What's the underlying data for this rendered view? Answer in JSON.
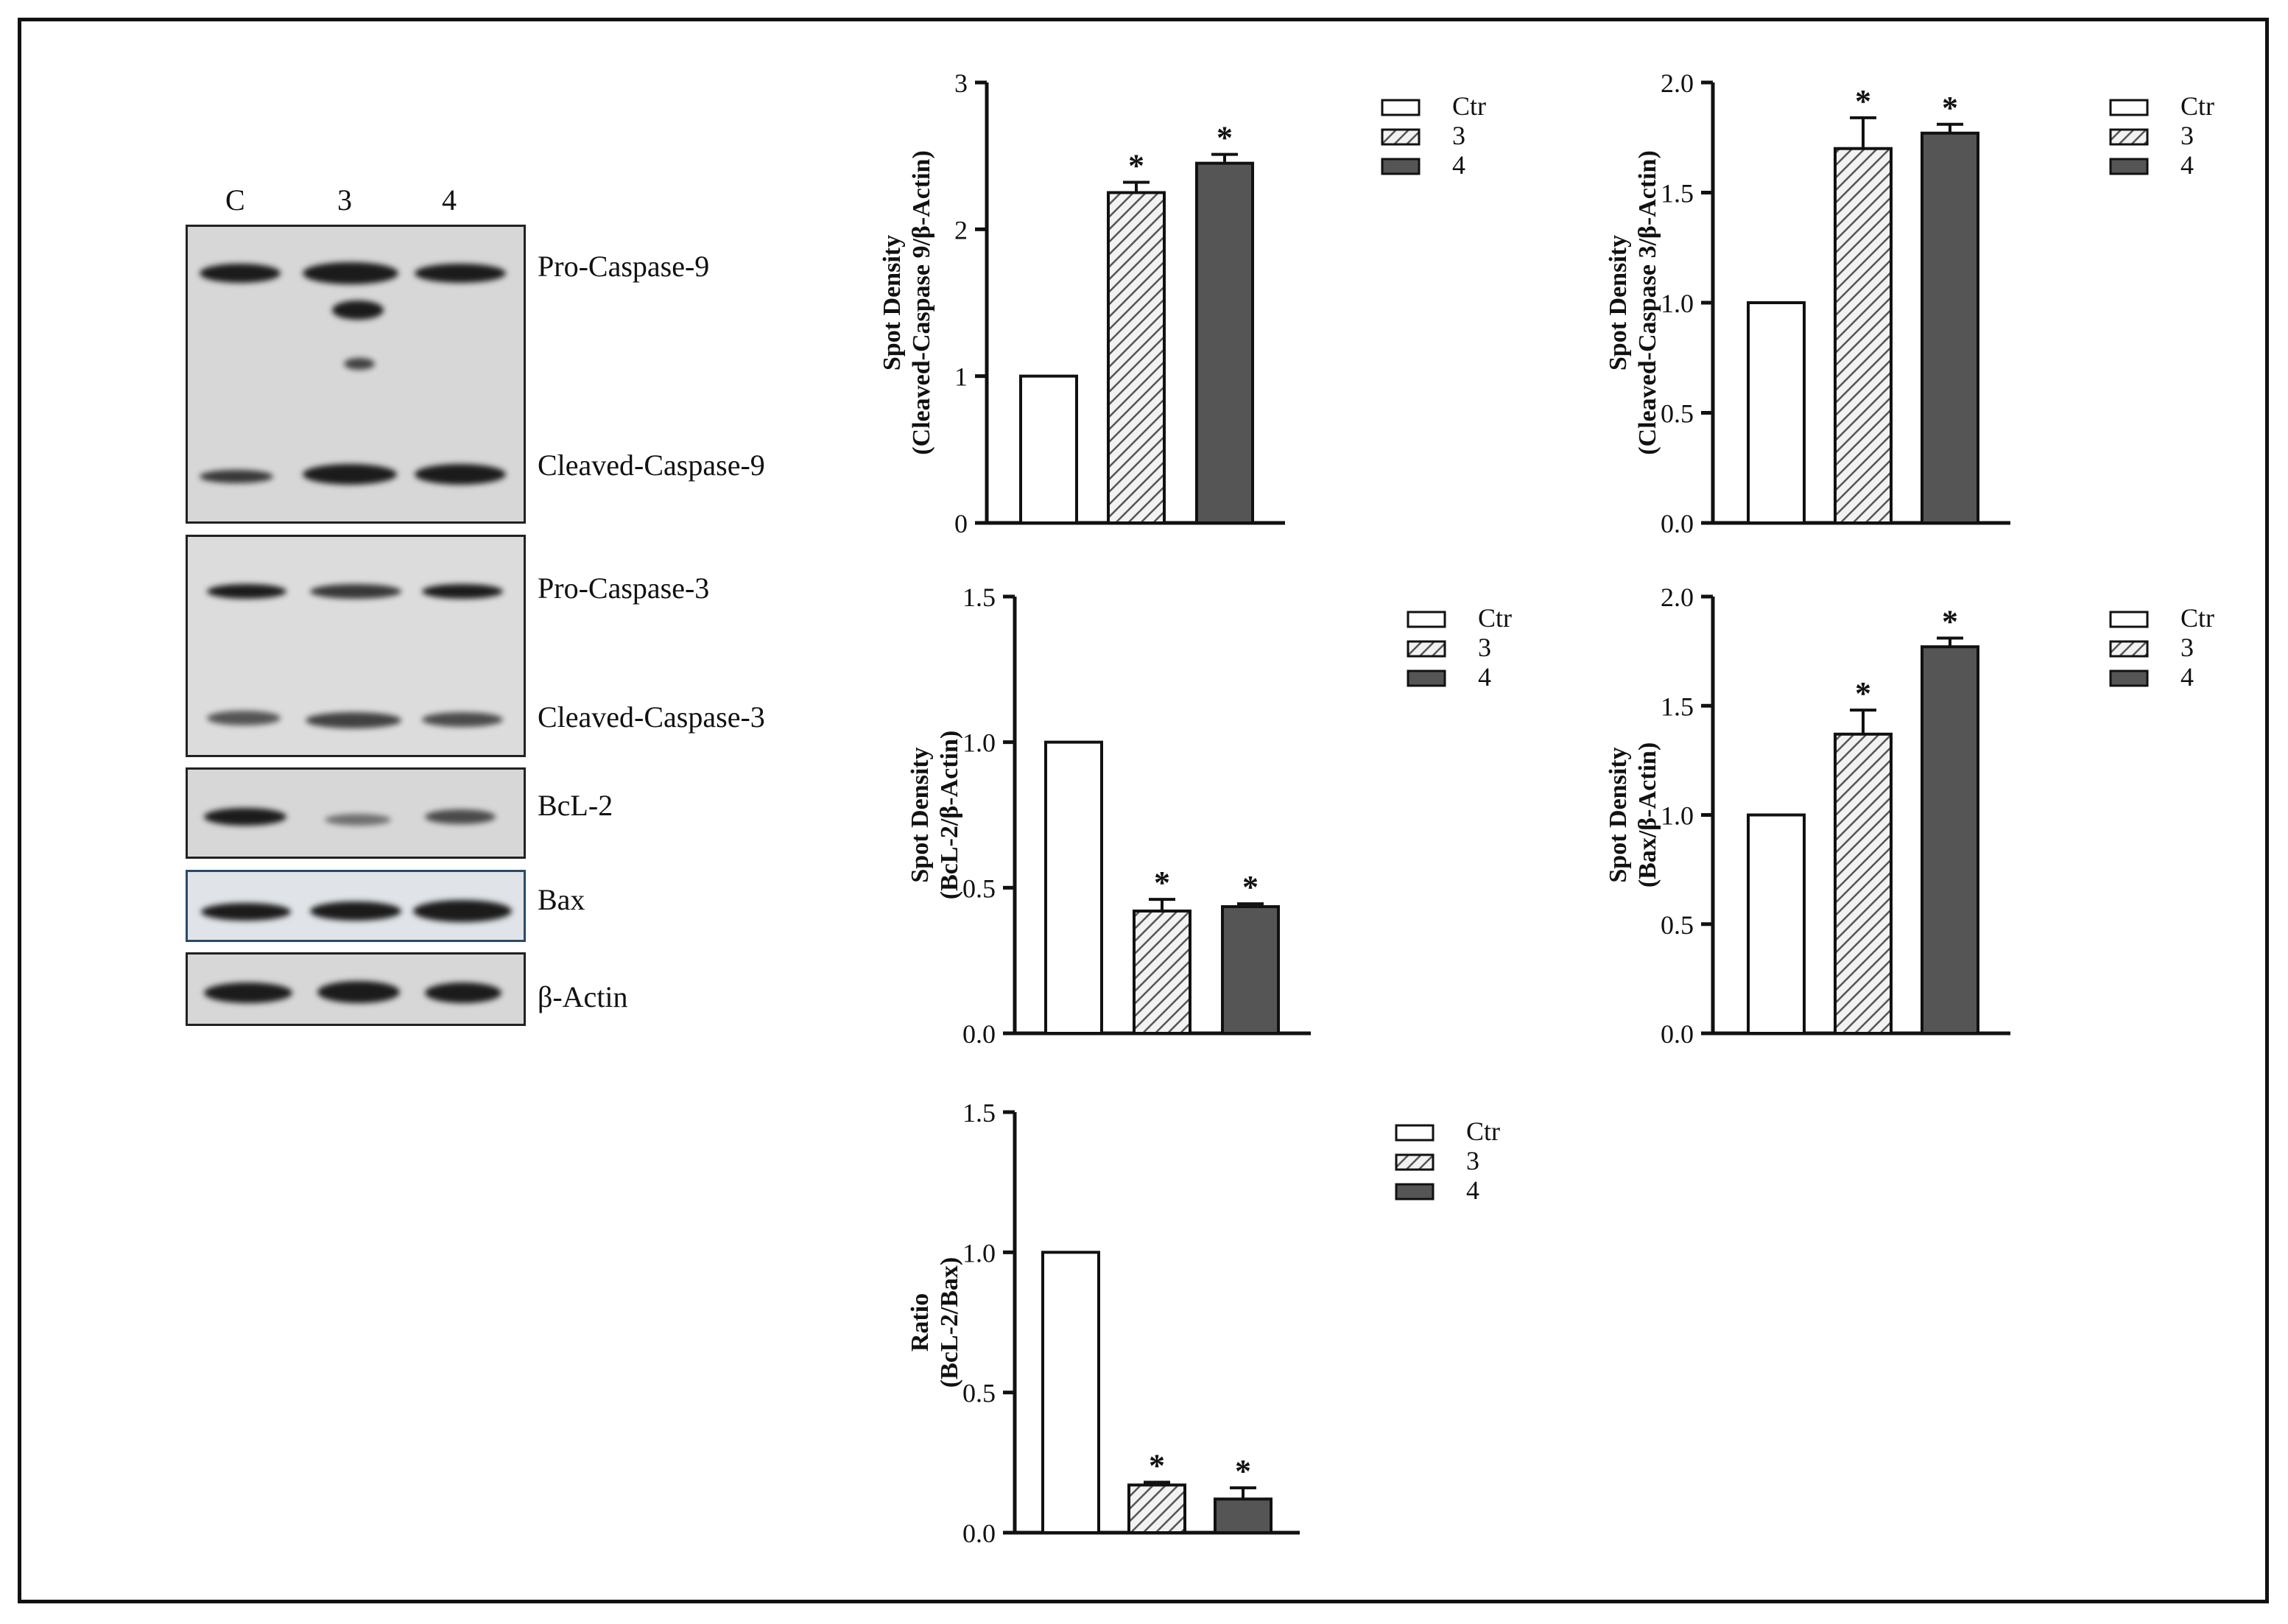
{
  "blot": {
    "lane_labels": [
      "C",
      "3",
      "4"
    ],
    "band_labels": [
      "Pro-Caspase-9",
      "Cleaved-Caspase-9",
      "Pro-Caspase-3",
      "Cleaved-Caspase-3",
      "BcL-2",
      "Bax",
      "β-Actin"
    ]
  },
  "colors": {
    "ctr": "#ffffff",
    "g3_hatch": "#555555",
    "g4": "#555555",
    "stroke": "#111111"
  },
  "chart_data": [
    {
      "type": "bar",
      "ylabel": "Spot Density",
      "ylabel2": "(Cleaved-Caspase 9/β-Actin)",
      "categories": [
        "Ctr",
        "3",
        "4"
      ],
      "values": [
        1.0,
        2.25,
        2.45
      ],
      "errors": [
        0,
        0.07,
        0.06
      ],
      "significance": [
        "",
        "*",
        "*"
      ],
      "ylim": [
        0,
        3
      ],
      "yticks": [
        0,
        1,
        2,
        3
      ],
      "ytick_labels": [
        "0",
        "1",
        "2",
        "3"
      ],
      "legend": [
        "Ctr",
        "3",
        "4"
      ]
    },
    {
      "type": "bar",
      "ylabel": "Spot Density",
      "ylabel2": "(Cleaved-Caspase 3/β-Actin)",
      "categories": [
        "Ctr",
        "3",
        "4"
      ],
      "values": [
        1.0,
        1.7,
        1.77
      ],
      "errors": [
        0,
        0.14,
        0.04
      ],
      "significance": [
        "",
        "*",
        "*"
      ],
      "ylim": [
        0,
        2
      ],
      "yticks": [
        0,
        0.5,
        1,
        1.5,
        2
      ],
      "ytick_labels": [
        "0.0",
        "0.5",
        "1.0",
        "1.5",
        "2.0"
      ],
      "legend": [
        "Ctr",
        "3",
        "4"
      ]
    },
    {
      "type": "bar",
      "ylabel": "Spot Density",
      "ylabel2": "(BcL-2/β-Actin)",
      "categories": [
        "Ctr",
        "3",
        "4"
      ],
      "values": [
        1.0,
        0.42,
        0.435
      ],
      "errors": [
        0,
        0.04,
        0.01
      ],
      "significance": [
        "",
        "*",
        "*"
      ],
      "ylim": [
        0,
        1.5
      ],
      "yticks": [
        0,
        0.5,
        1,
        1.5
      ],
      "ytick_labels": [
        "0.0",
        "0.5",
        "1.0",
        "1.5"
      ],
      "legend": [
        "Ctr",
        "3",
        "4"
      ]
    },
    {
      "type": "bar",
      "ylabel": "Spot Density",
      "ylabel2": "(Bax/β-Actin)",
      "categories": [
        "Ctr",
        "3",
        "4"
      ],
      "values": [
        1.0,
        1.37,
        1.77
      ],
      "errors": [
        0,
        0.11,
        0.04
      ],
      "significance": [
        "",
        "*",
        "*"
      ],
      "ylim": [
        0,
        2
      ],
      "yticks": [
        0,
        0.5,
        1,
        1.5,
        2
      ],
      "ytick_labels": [
        "0.0",
        "0.5",
        "1.0",
        "1.5",
        "2.0"
      ],
      "legend": [
        "Ctr",
        "3",
        "4"
      ]
    },
    {
      "type": "bar",
      "ylabel": "Ratio",
      "ylabel2": "(BcL-2/Bax)",
      "categories": [
        "Ctr",
        "3",
        "4"
      ],
      "values": [
        1.0,
        0.17,
        0.12
      ],
      "errors": [
        0,
        0.01,
        0.04
      ],
      "significance": [
        "",
        "*",
        "*"
      ],
      "ylim": [
        0,
        1.5
      ],
      "yticks": [
        0,
        0.5,
        1,
        1.5
      ],
      "ytick_labels": [
        "0.0",
        "0.5",
        "1.0",
        "1.5"
      ],
      "legend": [
        "Ctr",
        "3",
        "4"
      ]
    }
  ]
}
